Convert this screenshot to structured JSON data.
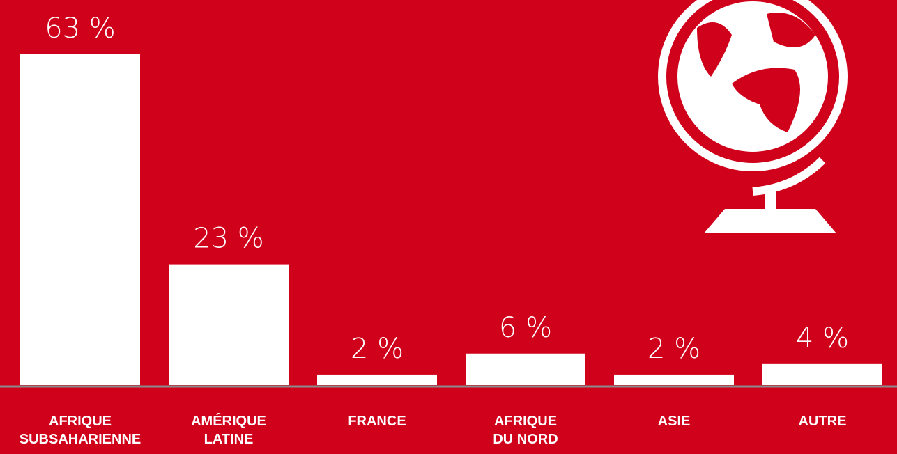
{
  "chart_data": {
    "type": "bar",
    "categories": [
      "AFRIQUE\nSUBSAHARIENNE",
      "AMÉRIQUE\nLATINE",
      "FRANCE",
      "AFRIQUE\nDU NORD",
      "ASIE",
      "AUTRE"
    ],
    "values": [
      63,
      23,
      2,
      6,
      2,
      4
    ],
    "value_labels": [
      "63 %",
      "23 %",
      "2 %",
      "6 %",
      "2 %",
      "4 %"
    ],
    "color": "#ffffff"
  }
}
